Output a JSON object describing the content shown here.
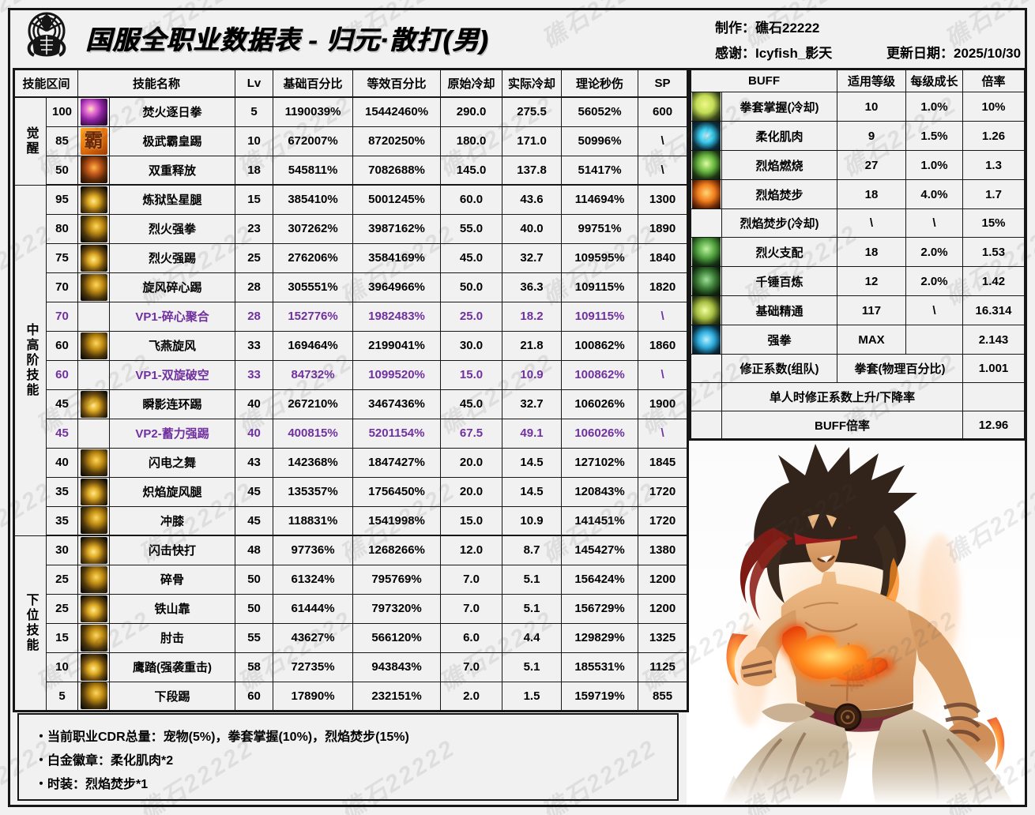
{
  "watermark": {
    "text": "礁石22222"
  },
  "header": {
    "title": "国服全职业数据表 - 归元·散打(男)",
    "maker": "制作：礁石22222",
    "thanks": "感谢：Icyfish_影天",
    "update_date": "更新日期：2025/10/30"
  },
  "skill_table": {
    "columns": {
      "range": "技能区间",
      "name": "技能名称",
      "lv": "Lv",
      "base": "基础百分比",
      "equiv": "等效百分比",
      "cd_orig": "原始冷却",
      "cd_actual": "实际冷却",
      "dps": "理论秒伤",
      "sp": "SP"
    },
    "groups": [
      {
        "label": "觉醒",
        "start": 0,
        "span": 3
      },
      {
        "label": "中高阶技能",
        "start": 3,
        "span": 12
      },
      {
        "label": "下位技能",
        "start": 15,
        "span": 6
      }
    ],
    "rows": [
      {
        "range": "100",
        "icon": "purple-flame-skill-icon",
        "icon_style": "sk-purple",
        "icon_glyph": "",
        "name": "焚火逐日拳",
        "lv": "5",
        "base": "1190039%",
        "equiv": "15442460%",
        "cd": "290.0",
        "cd_actual": "275.5",
        "dps": "56052%",
        "sp": "600",
        "vp": false
      },
      {
        "range": "85",
        "icon": "ba-character-skill-icon",
        "icon_style": "sk-ba",
        "icon_glyph": "霸",
        "name": "极武霸皇踢",
        "lv": "10",
        "base": "672007%",
        "equiv": "8720250%",
        "cd": "180.0",
        "cd_actual": "171.0",
        "dps": "50996%",
        "sp": "\\",
        "vp": false
      },
      {
        "range": "50",
        "icon": "demon-face-skill-icon",
        "icon_style": "sk-demon",
        "icon_glyph": "",
        "name": "双重释放",
        "lv": "18",
        "base": "545811%",
        "equiv": "7082688%",
        "cd": "145.0",
        "cd_actual": "137.8",
        "dps": "51417%",
        "sp": "\\",
        "vp": false
      },
      {
        "range": "95",
        "icon": "gold-flame-skill-icon",
        "icon_style": "sk-gold1",
        "icon_glyph": "",
        "name": "炼狱坠星腿",
        "lv": "15",
        "base": "385410%",
        "equiv": "5001245%",
        "cd": "60.0",
        "cd_actual": "43.6",
        "dps": "114694%",
        "sp": "1300",
        "vp": false
      },
      {
        "range": "80",
        "icon": "gold-flame-skill-icon",
        "icon_style": "sk-gold2",
        "icon_glyph": "",
        "name": "烈火强拳",
        "lv": "23",
        "base": "307262%",
        "equiv": "3987162%",
        "cd": "55.0",
        "cd_actual": "40.0",
        "dps": "99751%",
        "sp": "1890",
        "vp": false
      },
      {
        "range": "75",
        "icon": "gold-flame-skill-icon",
        "icon_style": "sk-gold1",
        "icon_glyph": "",
        "name": "烈火强踢",
        "lv": "25",
        "base": "276206%",
        "equiv": "3584169%",
        "cd": "45.0",
        "cd_actual": "32.7",
        "dps": "109595%",
        "sp": "1840",
        "vp": false
      },
      {
        "range": "70",
        "icon": "gold-flame-skill-icon",
        "icon_style": "sk-gold2",
        "icon_glyph": "",
        "name": "旋风碎心踢",
        "lv": "28",
        "base": "305551%",
        "equiv": "3964966%",
        "cd": "50.0",
        "cd_actual": "36.3",
        "dps": "109115%",
        "sp": "1820",
        "vp": false
      },
      {
        "range": "70",
        "icon": null,
        "icon_style": null,
        "icon_glyph": "",
        "name": "VP1-碎心聚合",
        "lv": "28",
        "base": "152776%",
        "equiv": "1982483%",
        "cd": "25.0",
        "cd_actual": "18.2",
        "dps": "109115%",
        "sp": "\\",
        "vp": true
      },
      {
        "range": "60",
        "icon": "gold-ring-skill-icon",
        "icon_style": "sk-gold2",
        "icon_glyph": "",
        "name": "飞燕旋风",
        "lv": "33",
        "base": "169464%",
        "equiv": "2199041%",
        "cd": "30.0",
        "cd_actual": "21.8",
        "dps": "100862%",
        "sp": "1860",
        "vp": false
      },
      {
        "range": "60",
        "icon": null,
        "icon_style": null,
        "icon_glyph": "",
        "name": "VP1-双旋破空",
        "lv": "33",
        "base": "84732%",
        "equiv": "1099520%",
        "cd": "15.0",
        "cd_actual": "10.9",
        "dps": "100862%",
        "sp": "\\",
        "vp": true
      },
      {
        "range": "45",
        "icon": "gold-kick-skill-icon",
        "icon_style": "sk-gold1",
        "icon_glyph": "",
        "name": "瞬影连环踢",
        "lv": "40",
        "base": "267210%",
        "equiv": "3467436%",
        "cd": "45.0",
        "cd_actual": "32.7",
        "dps": "106026%",
        "sp": "1900",
        "vp": false
      },
      {
        "range": "45",
        "icon": null,
        "icon_style": null,
        "icon_glyph": "",
        "name": "VP2-蓄力强踢",
        "lv": "40",
        "base": "400815%",
        "equiv": "5201154%",
        "cd": "67.5",
        "cd_actual": "49.1",
        "dps": "106026%",
        "sp": "\\",
        "vp": true
      },
      {
        "range": "40",
        "icon": "gold-lightning-skill-icon",
        "icon_style": "sk-gold2",
        "icon_glyph": "",
        "name": "闪电之舞",
        "lv": "43",
        "base": "142368%",
        "equiv": "1847427%",
        "cd": "20.0",
        "cd_actual": "14.5",
        "dps": "127102%",
        "sp": "1845",
        "vp": false
      },
      {
        "range": "35",
        "icon": "gold-flame-skill-icon",
        "icon_style": "sk-gold1",
        "icon_glyph": "",
        "name": "炽焰旋风腿",
        "lv": "45",
        "base": "135357%",
        "equiv": "1756450%",
        "cd": "20.0",
        "cd_actual": "14.5",
        "dps": "120843%",
        "sp": "1720",
        "vp": false
      },
      {
        "range": "35",
        "icon": "gold-knee-skill-icon",
        "icon_style": "sk-gold2",
        "icon_glyph": "",
        "name": "冲膝",
        "lv": "45",
        "base": "118831%",
        "equiv": "1541998%",
        "cd": "15.0",
        "cd_actual": "10.9",
        "dps": "141451%",
        "sp": "1720",
        "vp": false
      },
      {
        "range": "30",
        "icon": "gold-flash-skill-icon",
        "icon_style": "sk-gold1",
        "icon_glyph": "",
        "name": "闪击快打",
        "lv": "48",
        "base": "97736%",
        "equiv": "1268266%",
        "cd": "12.0",
        "cd_actual": "8.7",
        "dps": "145427%",
        "sp": "1380",
        "vp": false
      },
      {
        "range": "25",
        "icon": "gold-crush-skill-icon",
        "icon_style": "sk-gold2",
        "icon_glyph": "",
        "name": "碎骨",
        "lv": "50",
        "base": "61324%",
        "equiv": "795769%",
        "cd": "7.0",
        "cd_actual": "5.1",
        "dps": "156424%",
        "sp": "1200",
        "vp": false
      },
      {
        "range": "25",
        "icon": "gold-shoulder-skill-icon",
        "icon_style": "sk-gold1",
        "icon_glyph": "",
        "name": "铁山靠",
        "lv": "50",
        "base": "61444%",
        "equiv": "797320%",
        "cd": "7.0",
        "cd_actual": "5.1",
        "dps": "156729%",
        "sp": "1200",
        "vp": false
      },
      {
        "range": "15",
        "icon": "gold-elbow-skill-icon",
        "icon_style": "sk-gold2",
        "icon_glyph": "",
        "name": "肘击",
        "lv": "55",
        "base": "43627%",
        "equiv": "566120%",
        "cd": "6.0",
        "cd_actual": "4.4",
        "dps": "129829%",
        "sp": "1325",
        "vp": false
      },
      {
        "range": "10",
        "icon": "gold-stomp-skill-icon",
        "icon_style": "sk-gold1",
        "icon_glyph": "",
        "name": "鹰踏(强袭重击)",
        "lv": "58",
        "base": "72735%",
        "equiv": "943843%",
        "cd": "7.0",
        "cd_actual": "5.1",
        "dps": "185531%",
        "sp": "1125",
        "vp": false
      },
      {
        "range": "5",
        "icon": "gold-lowkick-skill-icon",
        "icon_style": "sk-gold2",
        "icon_glyph": "",
        "name": "下段踢",
        "lv": "60",
        "base": "17890%",
        "equiv": "232151%",
        "cd": "2.0",
        "cd_actual": "1.5",
        "dps": "159719%",
        "sp": "855",
        "vp": false
      }
    ]
  },
  "buff_table": {
    "columns": {
      "buff": "BUFF",
      "level": "适用等级",
      "growth": "每级成长",
      "rate": "倍率"
    },
    "rows": [
      {
        "type": "normal",
        "icon": "green-glove-buff-icon",
        "icon_style": "bf-glove",
        "name": "拳套掌握(冷却)",
        "level": "10",
        "growth": "1.0%",
        "rate": "10%"
      },
      {
        "type": "normal",
        "icon": "cyan-burst-buff-icon",
        "icon_style": "bf-burst",
        "name": "柔化肌肉",
        "level": "9",
        "growth": "1.5%",
        "rate": "1.26"
      },
      {
        "type": "normal",
        "icon": "green-flame-face-buff-icon",
        "icon_style": "bf-face-green",
        "name": "烈焰燃烧",
        "level": "27",
        "growth": "1.0%",
        "rate": "1.3"
      },
      {
        "type": "normal",
        "icon": "orange-flame-face-buff-icon",
        "icon_style": "bf-face-orange",
        "name": "烈焰焚步",
        "level": "18",
        "growth": "4.0%",
        "rate": "1.7"
      },
      {
        "type": "normal",
        "icon": null,
        "icon_style": null,
        "name": "烈焰焚步(冷却)",
        "level": "\\",
        "growth": "\\",
        "rate": "15%"
      },
      {
        "type": "normal",
        "icon": "green-figure-buff-icon",
        "icon_style": "bf-fig-green",
        "name": "烈火支配",
        "level": "18",
        "growth": "2.0%",
        "rate": "1.53"
      },
      {
        "type": "normal",
        "icon": "green-figure2-buff-icon",
        "icon_style": "bf-fig-green2",
        "name": "千锤百炼",
        "level": "12",
        "growth": "2.0%",
        "rate": "1.42"
      },
      {
        "type": "normal",
        "icon": "yellow-figure-buff-icon",
        "icon_style": "bf-fig-yellow",
        "name": "基础精通",
        "level": "117",
        "growth": "\\",
        "rate": "16.314"
      },
      {
        "type": "normal",
        "icon": "cyan-figure-buff-icon",
        "icon_style": "bf-fig-cyan",
        "name": "强拳",
        "level": "MAX",
        "growth": "",
        "rate": "2.143"
      },
      {
        "type": "merge2",
        "name": "修正系数(组队)",
        "merged": "拳套(物理百分比)",
        "rate": "1.001"
      },
      {
        "type": "merge3",
        "name": "单人时修正系数上升/下降率",
        "rate": ""
      },
      {
        "type": "merge3",
        "name": "BUFF倍率",
        "rate": "12.96"
      }
    ]
  },
  "notes": {
    "lines": [
      "・当前职业CDR总量：宠物(5%)，拳套掌握(10%)，烈焰焚步(15%)",
      "・白金徽章：柔化肌肉*2",
      "・时装：烈焰焚步*1"
    ]
  }
}
